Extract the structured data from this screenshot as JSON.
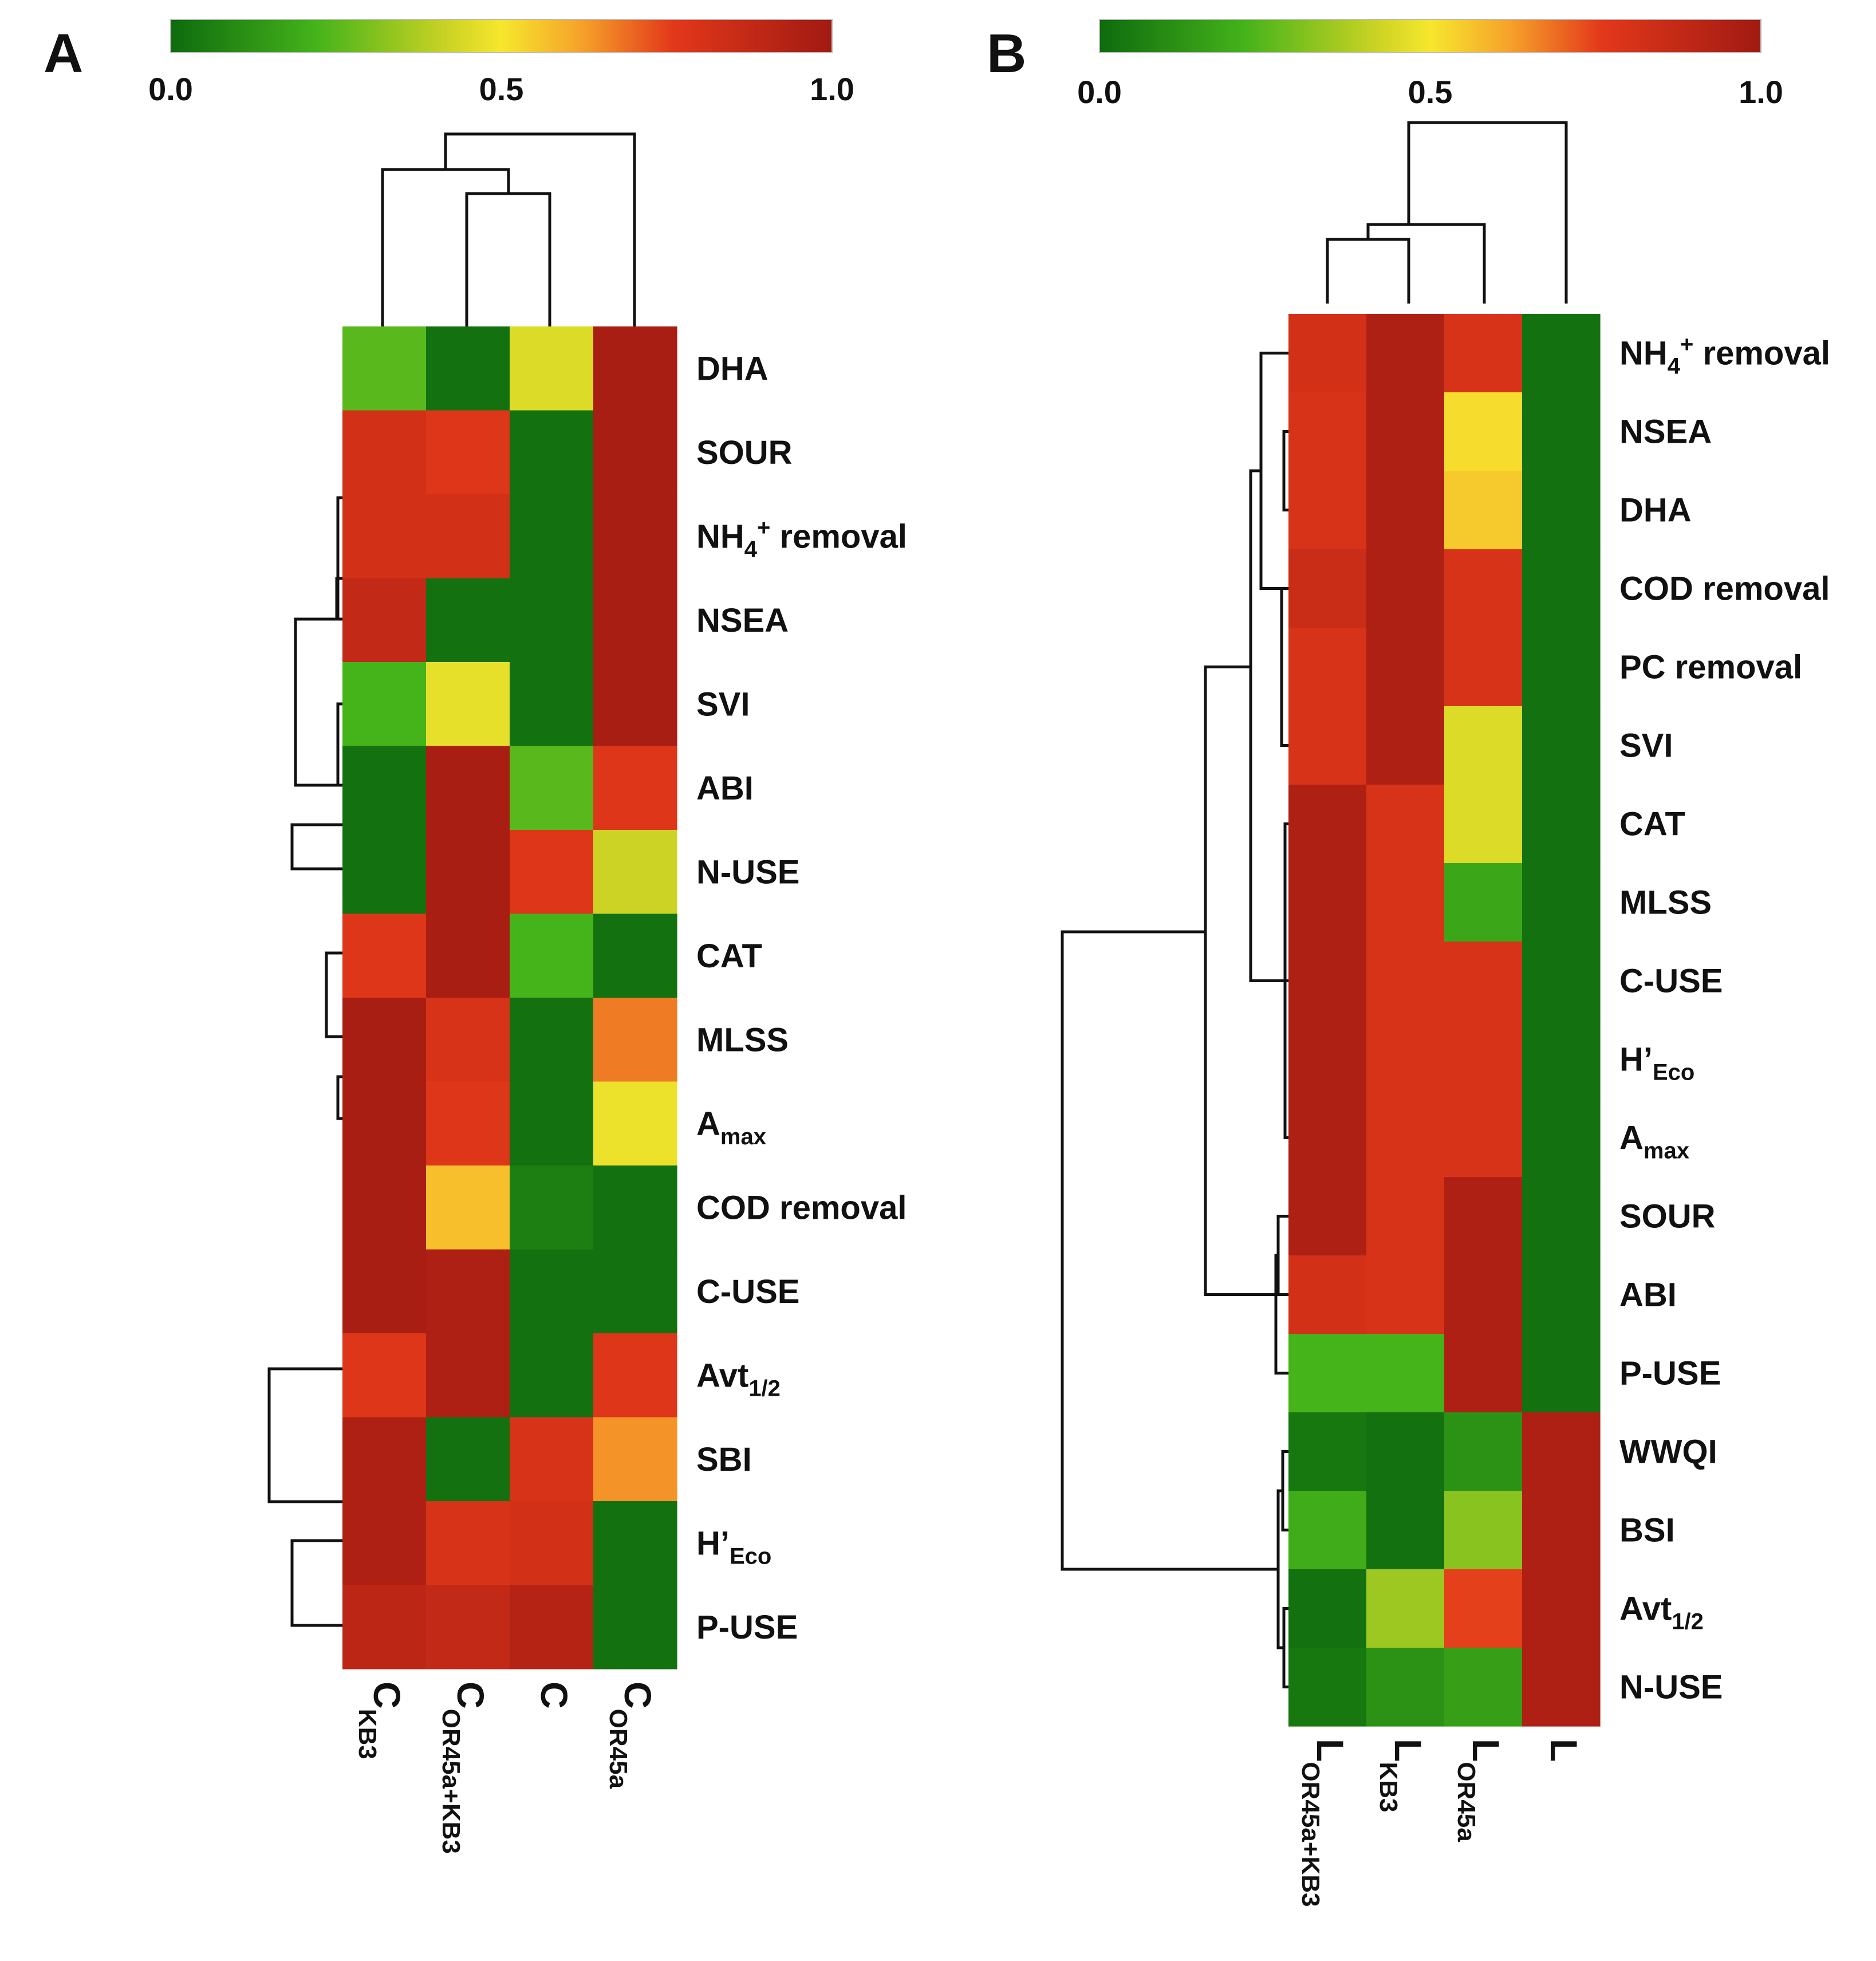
{
  "chart_data": [
    {
      "type": "heatmap",
      "panel": "A",
      "colorbar": {
        "min": 0.0,
        "max": 1.0,
        "ticks": [
          "0.0",
          "0.5",
          "1.0"
        ]
      },
      "columns": [
        {
          "main": "C",
          "sub": "KB3"
        },
        {
          "main": "C",
          "sub": "OR45a+KB3"
        },
        {
          "main": "C",
          "sub": ""
        },
        {
          "main": "C",
          "sub": "OR45a"
        }
      ],
      "rows": [
        {
          "main": "DHA",
          "sub": "",
          "sup": "",
          "tail": ""
        },
        {
          "main": "SOUR",
          "sub": "",
          "sup": "",
          "tail": ""
        },
        {
          "main": "NH",
          "sub": "4",
          "sup": "+",
          "tail": " removal"
        },
        {
          "main": "NSEA",
          "sub": "",
          "sup": "",
          "tail": ""
        },
        {
          "main": "SVI",
          "sub": "",
          "sup": "",
          "tail": ""
        },
        {
          "main": "ABI",
          "sub": "",
          "sup": "",
          "tail": ""
        },
        {
          "main": "N-USE",
          "sub": "",
          "sup": "",
          "tail": ""
        },
        {
          "main": "CAT",
          "sub": "",
          "sup": "",
          "tail": ""
        },
        {
          "main": "MLSS",
          "sub": "",
          "sup": "",
          "tail": ""
        },
        {
          "main": "A",
          "sub": "max",
          "sup": "",
          "tail": ""
        },
        {
          "main": "COD removal",
          "sub": "",
          "sup": "",
          "tail": ""
        },
        {
          "main": "C-USE",
          "sub": "",
          "sup": "",
          "tail": ""
        },
        {
          "main": "Avt",
          "sub": "1/2",
          "sup": "",
          "tail": ""
        },
        {
          "main": "SBI",
          "sub": "",
          "sup": "",
          "tail": ""
        },
        {
          "main": "H’",
          "sub": "Eco",
          "sup": "",
          "tail": ""
        },
        {
          "main": "P-USE",
          "sub": "",
          "sup": "",
          "tail": ""
        }
      ],
      "values": [
        [
          0.25,
          0.02,
          0.45,
          0.97
        ],
        [
          0.82,
          0.78,
          0.02,
          0.97
        ],
        [
          0.82,
          0.82,
          0.02,
          0.97
        ],
        [
          0.88,
          0.02,
          0.02,
          0.97
        ],
        [
          0.22,
          0.47,
          0.02,
          0.97
        ],
        [
          0.02,
          0.97,
          0.25,
          0.78
        ],
        [
          0.02,
          0.97,
          0.78,
          0.42
        ],
        [
          0.78,
          0.97,
          0.22,
          0.02
        ],
        [
          0.97,
          0.8,
          0.02,
          0.67
        ],
        [
          0.97,
          0.78,
          0.02,
          0.48
        ],
        [
          0.97,
          0.57,
          0.06,
          0.02
        ],
        [
          0.97,
          0.95,
          0.02,
          0.02
        ],
        [
          0.78,
          0.95,
          0.02,
          0.78
        ],
        [
          0.95,
          0.02,
          0.8,
          0.64
        ],
        [
          0.95,
          0.8,
          0.82,
          0.02
        ],
        [
          0.9,
          0.88,
          0.93,
          0.02
        ]
      ]
    },
    {
      "type": "heatmap",
      "panel": "B",
      "colorbar": {
        "min": 0.0,
        "max": 1.0,
        "ticks": [
          "0.0",
          "0.5",
          "1.0"
        ]
      },
      "columns": [
        {
          "main": "L",
          "sub": "OR45a+KB3"
        },
        {
          "main": "L",
          "sub": "KB3"
        },
        {
          "main": "L",
          "sub": "OR45a"
        },
        {
          "main": "L",
          "sub": ""
        }
      ],
      "rows": [
        {
          "main": "NH",
          "sub": "4",
          "sup": "+",
          "tail": " removal"
        },
        {
          "main": "NSEA",
          "sub": "",
          "sup": "",
          "tail": ""
        },
        {
          "main": "DHA",
          "sub": "",
          "sup": "",
          "tail": ""
        },
        {
          "main": "COD removal",
          "sub": "",
          "sup": "",
          "tail": ""
        },
        {
          "main": "PC removal",
          "sub": "",
          "sup": "",
          "tail": ""
        },
        {
          "main": "SVI",
          "sub": "",
          "sup": "",
          "tail": ""
        },
        {
          "main": "CAT",
          "sub": "",
          "sup": "",
          "tail": ""
        },
        {
          "main": "MLSS",
          "sub": "",
          "sup": "",
          "tail": ""
        },
        {
          "main": "C-USE",
          "sub": "",
          "sup": "",
          "tail": ""
        },
        {
          "main": "H’",
          "sub": "Eco",
          "sup": "",
          "tail": ""
        },
        {
          "main": "A",
          "sub": "max",
          "sup": "",
          "tail": ""
        },
        {
          "main": "SOUR",
          "sub": "",
          "sup": "",
          "tail": ""
        },
        {
          "main": "ABI",
          "sub": "",
          "sup": "",
          "tail": ""
        },
        {
          "main": "P-USE",
          "sub": "",
          "sup": "",
          "tail": ""
        },
        {
          "main": "WWQI",
          "sub": "",
          "sup": "",
          "tail": ""
        },
        {
          "main": "BSI",
          "sub": "",
          "sup": "",
          "tail": ""
        },
        {
          "main": "Avt",
          "sub": "1/2",
          "sup": "",
          "tail": ""
        },
        {
          "main": "N-USE",
          "sub": "",
          "sup": "",
          "tail": ""
        }
      ],
      "values": [
        [
          0.82,
          0.95,
          0.8,
          0.02
        ],
        [
          0.8,
          0.95,
          0.52,
          0.02
        ],
        [
          0.8,
          0.95,
          0.55,
          0.02
        ],
        [
          0.85,
          0.95,
          0.8,
          0.02
        ],
        [
          0.8,
          0.95,
          0.8,
          0.02
        ],
        [
          0.8,
          0.95,
          0.45,
          0.02
        ],
        [
          0.95,
          0.8,
          0.45,
          0.02
        ],
        [
          0.95,
          0.8,
          0.18,
          0.02
        ],
        [
          0.95,
          0.8,
          0.8,
          0.02
        ],
        [
          0.95,
          0.8,
          0.8,
          0.02
        ],
        [
          0.95,
          0.8,
          0.8,
          0.02
        ],
        [
          0.95,
          0.8,
          0.95,
          0.02
        ],
        [
          0.82,
          0.8,
          0.95,
          0.02
        ],
        [
          0.22,
          0.22,
          0.95,
          0.02
        ],
        [
          0.04,
          0.02,
          0.12,
          0.95
        ],
        [
          0.2,
          0.02,
          0.32,
          0.95
        ],
        [
          0.02,
          0.35,
          0.75,
          0.95
        ],
        [
          0.04,
          0.12,
          0.16,
          0.95
        ]
      ]
    }
  ]
}
